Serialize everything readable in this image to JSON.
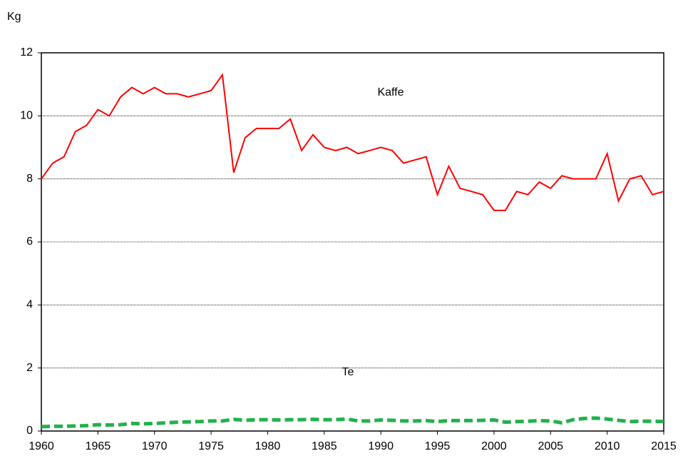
{
  "chart_data": {
    "type": "line",
    "y_label": "Kg",
    "annotations": [
      "Kaffe",
      "Te"
    ],
    "x": [
      1960,
      1961,
      1962,
      1963,
      1964,
      1965,
      1966,
      1967,
      1968,
      1969,
      1970,
      1971,
      1972,
      1973,
      1974,
      1975,
      1976,
      1977,
      1978,
      1979,
      1980,
      1981,
      1982,
      1983,
      1984,
      1985,
      1986,
      1987,
      1988,
      1989,
      1990,
      1991,
      1992,
      1993,
      1994,
      1995,
      1996,
      1997,
      1998,
      1999,
      2000,
      2001,
      2002,
      2003,
      2004,
      2005,
      2006,
      2007,
      2008,
      2009,
      2010,
      2011,
      2012,
      2013,
      2014,
      2015
    ],
    "series": [
      {
        "name": "Kaffe",
        "color": "#ff0000",
        "dashed": false,
        "values": [
          8.0,
          8.5,
          8.7,
          9.5,
          9.7,
          10.2,
          10.0,
          10.6,
          10.9,
          10.7,
          10.9,
          10.7,
          10.7,
          10.6,
          10.7,
          10.8,
          11.3,
          8.2,
          9.3,
          9.6,
          9.6,
          9.6,
          9.9,
          8.9,
          9.4,
          9.0,
          8.9,
          9.0,
          8.8,
          8.9,
          9.0,
          8.9,
          8.5,
          8.6,
          8.7,
          7.5,
          8.4,
          7.7,
          7.6,
          7.5,
          7.0,
          7.0,
          7.6,
          7.5,
          7.9,
          7.7,
          8.1,
          8.0,
          8.0,
          8.0,
          8.8,
          7.3,
          8.0,
          8.1,
          7.5,
          7.6
        ]
      },
      {
        "name": "Te",
        "color": "#22b14c",
        "dashed": true,
        "values": [
          0.14,
          0.15,
          0.15,
          0.16,
          0.17,
          0.2,
          0.19,
          0.2,
          0.24,
          0.23,
          0.24,
          0.26,
          0.28,
          0.29,
          0.3,
          0.32,
          0.32,
          0.37,
          0.34,
          0.36,
          0.36,
          0.35,
          0.36,
          0.36,
          0.37,
          0.36,
          0.36,
          0.38,
          0.32,
          0.32,
          0.35,
          0.34,
          0.32,
          0.32,
          0.33,
          0.3,
          0.33,
          0.33,
          0.33,
          0.34,
          0.35,
          0.28,
          0.3,
          0.31,
          0.33,
          0.32,
          0.26,
          0.36,
          0.4,
          0.41,
          0.38,
          0.34,
          0.3,
          0.31,
          0.31,
          0.3
        ]
      }
    ],
    "xlim": [
      1960,
      2015
    ],
    "xticks": [
      1960,
      1965,
      1970,
      1975,
      1980,
      1985,
      1990,
      1995,
      2000,
      2005,
      2010,
      2015
    ],
    "ylim": [
      0,
      12
    ],
    "yticks": [
      0,
      2,
      4,
      6,
      8,
      10,
      12
    ],
    "grid": true
  }
}
